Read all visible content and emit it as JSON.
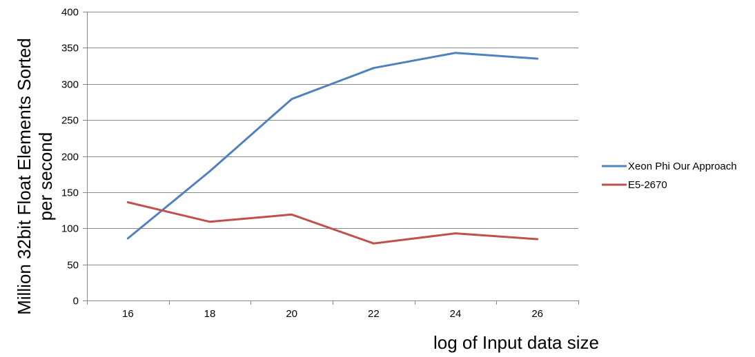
{
  "chart_data": {
    "type": "line",
    "categories": [
      "16",
      "18",
      "20",
      "22",
      "24",
      "26"
    ],
    "series": [
      {
        "name": "Xeon Phi Our Approach",
        "color": "#4f81bd",
        "values": [
          86,
          179,
          279,
          322,
          343,
          335
        ]
      },
      {
        "name": "E5-2670",
        "color": "#c0504d",
        "values": [
          136,
          109,
          119,
          79,
          93,
          85
        ]
      }
    ],
    "yticks": [
      "0",
      "50",
      "100",
      "150",
      "200",
      "250",
      "300",
      "350",
      "400"
    ],
    "ylim": [
      0,
      400
    ],
    "ylabel_lines": [
      "Million 32bit Float Elements Sorted",
      "per second"
    ],
    "xlabel": "log of Input data size",
    "grid": true,
    "legend_position": "right"
  }
}
